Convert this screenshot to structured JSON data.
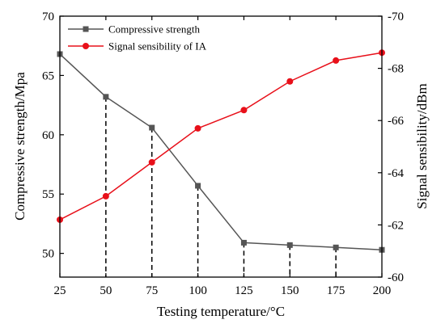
{
  "chart_data": {
    "type": "line",
    "xlabel": "Testing temperature/°C",
    "ylabel_left": "Compressive strength/Mpa",
    "ylabel_right": "Signal sensibility/dBm",
    "x": [
      25,
      50,
      75,
      100,
      125,
      150,
      175,
      200
    ],
    "x_ticks": [
      "25",
      "50",
      "75",
      "100",
      "125",
      "150",
      "175",
      "200"
    ],
    "xlim": [
      25,
      200
    ],
    "ylim_left": [
      48,
      70
    ],
    "ylim_right": [
      -60,
      -70
    ],
    "y_ticks_left": [
      "50",
      "55",
      "60",
      "65",
      "70"
    ],
    "y_ticks_right": [
      "-60",
      "-62",
      "-64",
      "-66",
      "-68",
      "-70"
    ],
    "grid": false,
    "legend_position": "top-left",
    "guide_lines": "dashed vertical lines from compressive strength points to x-axis (50 to 175)",
    "series": [
      {
        "name": "Compressive strength",
        "axis": "left",
        "color": "#555555",
        "marker": "square",
        "values": [
          66.8,
          63.2,
          60.6,
          55.7,
          50.9,
          50.7,
          50.5,
          50.3
        ]
      },
      {
        "name": "Signal sensibility of IA",
        "axis": "right",
        "color": "#e8101a",
        "marker": "circle",
        "values": [
          -62.2,
          -63.1,
          -64.4,
          -65.7,
          -66.4,
          -67.5,
          -68.3,
          -68.6
        ]
      }
    ]
  }
}
